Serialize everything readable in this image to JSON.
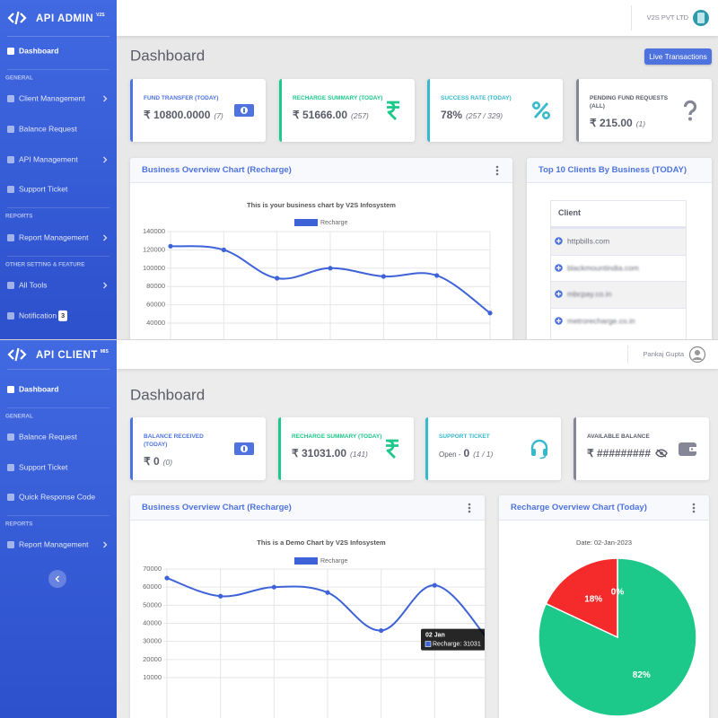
{
  "admin": {
    "brand": "API ADMIN",
    "brand_tag": "V2S",
    "sidebar": [
      {
        "text": "Dashboard",
        "kind": "active"
      },
      {
        "text": "GENERAL",
        "kind": "section"
      },
      {
        "text": "Client Management",
        "kind": "item",
        "submenu": true
      },
      {
        "text": "Balance Request",
        "kind": "item"
      },
      {
        "text": "API Management",
        "kind": "item",
        "submenu": true
      },
      {
        "text": "Support Ticket",
        "kind": "item"
      },
      {
        "text": "REPORTS",
        "kind": "section"
      },
      {
        "text": "Report Management",
        "kind": "item",
        "submenu": true
      },
      {
        "text": "OTHER SETTING & FEATURE",
        "kind": "section"
      },
      {
        "text": "All Tools",
        "kind": "item",
        "submenu": true
      },
      {
        "text": "Notification",
        "kind": "item",
        "badge": 3
      }
    ],
    "user": "V2S PVT LTD",
    "page_title": "Dashboard",
    "button": "Live Transactions",
    "cards": [
      {
        "title": "FUND TRANSFER (TODAY)",
        "value": "₹ 10800.0000",
        "count": "(7)"
      },
      {
        "title": "RECHARGE SUMMARY (TODAY)",
        "value": "₹ 51666.00",
        "count": "(257)"
      },
      {
        "title": "SUCCESS RATE (TODAY)",
        "value": "78%",
        "count": "(257 / 329)"
      },
      {
        "title": "PENDING FUND REQUESTS (ALL)",
        "value": "₹ 215.00",
        "count": "(1)"
      }
    ],
    "chart": {
      "type": "line",
      "header": "Business Overview Chart (Recharge)",
      "title": "This is your business chart by V2S Infosystem",
      "series": [
        {
          "name": "Recharge",
          "color": "#3e63d8",
          "values": [
            124000,
            120000,
            89000,
            100000,
            91000,
            92000,
            51000
          ]
        }
      ],
      "ylim": [
        40000,
        140000
      ],
      "yticks": [
        40000,
        60000,
        80000,
        100000,
        120000,
        140000
      ],
      "grid": true
    },
    "clients": {
      "header": "Top 10 Clients By Business (TODAY)",
      "column": "Client",
      "rows": [
        "httpbills.com",
        "blackmountindia.com",
        "mbcpay.co.in",
        "metrorecharge.co.in"
      ]
    }
  },
  "client": {
    "brand": "API CLIENT",
    "brand_tag": "MIS",
    "sidebar": [
      {
        "text": "Dashboard",
        "kind": "active"
      },
      {
        "text": "GENERAL",
        "kind": "section"
      },
      {
        "text": "Balance Request",
        "kind": "item"
      },
      {
        "text": "Support Ticket",
        "kind": "item"
      },
      {
        "text": "Quick Response Code",
        "kind": "item"
      },
      {
        "text": "REPORTS",
        "kind": "section"
      },
      {
        "text": "Report Management",
        "kind": "item",
        "submenu": true
      }
    ],
    "user": "Pankaj Gupta",
    "page_title": "Dashboard",
    "cards": [
      {
        "title": "BALANCE RECEIVED (TODAY)",
        "value": "₹ 0",
        "count": "(0)"
      },
      {
        "title": "RECHARGE SUMMARY (TODAY)",
        "value": "₹ 31031.00",
        "count": "(141)"
      },
      {
        "title": "SUPPORT TICKET",
        "prefix": "Open -",
        "value": "0",
        "count": "(1 / 1)"
      },
      {
        "title": "AVAILABLE BALANCE",
        "value": "₹ #########"
      }
    ],
    "chart": {
      "type": "line",
      "header": "Business Overview Chart (Recharge)",
      "title": "This is a Demo Chart by V2S Infosystem",
      "series": [
        {
          "name": "Recharge",
          "color": "#3e63d8",
          "values": [
            65000,
            55000,
            60000,
            57000,
            36000,
            61000,
            31031
          ]
        }
      ],
      "ylim": [
        10000,
        70000
      ],
      "yticks": [
        10000,
        20000,
        30000,
        40000,
        50000,
        60000,
        70000
      ],
      "grid": true,
      "tooltip": {
        "title": "02 Jan",
        "label": "Recharge: 31031"
      }
    },
    "pie": {
      "type": "pie",
      "header": "Recharge Overview Chart (Today)",
      "title": "Date: 02-Jan-2023",
      "values": [
        82,
        18,
        0
      ],
      "value_labels": [
        "82%",
        "18%",
        "0%"
      ],
      "colors": [
        "#1dc98a",
        "#f52a2a",
        "#4e73df"
      ]
    }
  }
}
